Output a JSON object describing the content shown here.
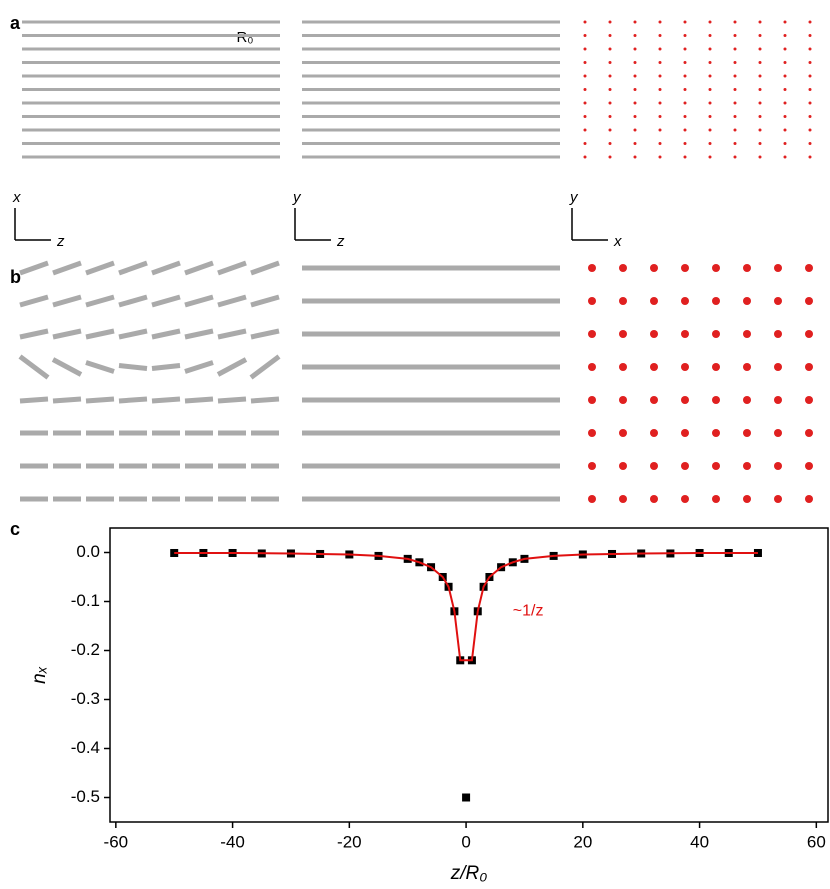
{
  "panels": [
    {
      "label": "a",
      "scale_label": "R₀",
      "axes": [
        {
          "up": "x",
          "right": "z"
        },
        {
          "up": "y",
          "right": "z"
        },
        {
          "up": "y",
          "right": "x"
        }
      ]
    },
    {
      "label": "b"
    },
    {
      "label": "c"
    }
  ],
  "chart_data": {
    "type": "scatter",
    "xlabel": "z/R₀",
    "ylabel": "nₓ",
    "xlim": [
      -61,
      62
    ],
    "ylim": [
      -0.55,
      0.05
    ],
    "xticks": [
      -60,
      -40,
      -20,
      0,
      20,
      40,
      60
    ],
    "yticks": [
      {
        "value": 0,
        "label": "0.0"
      },
      -0.1,
      -0.2,
      -0.3,
      -0.4,
      -0.5
    ],
    "annotation": "~1/z",
    "series": [
      {
        "color": "#000000",
        "marker": "square",
        "x": [
          -50,
          -45,
          -40,
          -35,
          -30,
          -25,
          -20,
          -15,
          -10,
          -8,
          -6,
          -4,
          -3,
          -2,
          -1,
          0,
          1,
          2,
          3,
          4,
          6,
          8,
          10,
          15,
          20,
          25,
          30,
          35,
          40,
          45,
          50
        ],
        "values": [
          -0.001,
          -0.001,
          -0.001,
          -0.002,
          -0.002,
          -0.003,
          -0.004,
          -0.007,
          -0.013,
          -0.02,
          -0.03,
          -0.05,
          -0.07,
          -0.12,
          -0.22,
          -0.5,
          -0.22,
          -0.12,
          -0.07,
          -0.05,
          -0.03,
          -0.02,
          -0.013,
          -0.007,
          -0.004,
          -0.003,
          -0.002,
          -0.002,
          -0.001,
          -0.001,
          -0.001
        ]
      },
      {
        "color": "#e01010",
        "marker": "line",
        "x": [
          -50,
          -40,
          -30,
          -20,
          -15,
          -10,
          -8,
          -6,
          -4,
          -3,
          -2,
          -1,
          1,
          2,
          3,
          4,
          6,
          8,
          10,
          15,
          20,
          30,
          40,
          50
        ],
        "values": [
          -0.001,
          -0.001,
          -0.002,
          -0.004,
          -0.007,
          -0.013,
          -0.02,
          -0.03,
          -0.05,
          -0.07,
          -0.12,
          -0.22,
          -0.22,
          -0.12,
          -0.07,
          -0.05,
          -0.03,
          -0.02,
          -0.013,
          -0.007,
          -0.004,
          -0.002,
          -0.001,
          -0.001
        ]
      }
    ]
  }
}
